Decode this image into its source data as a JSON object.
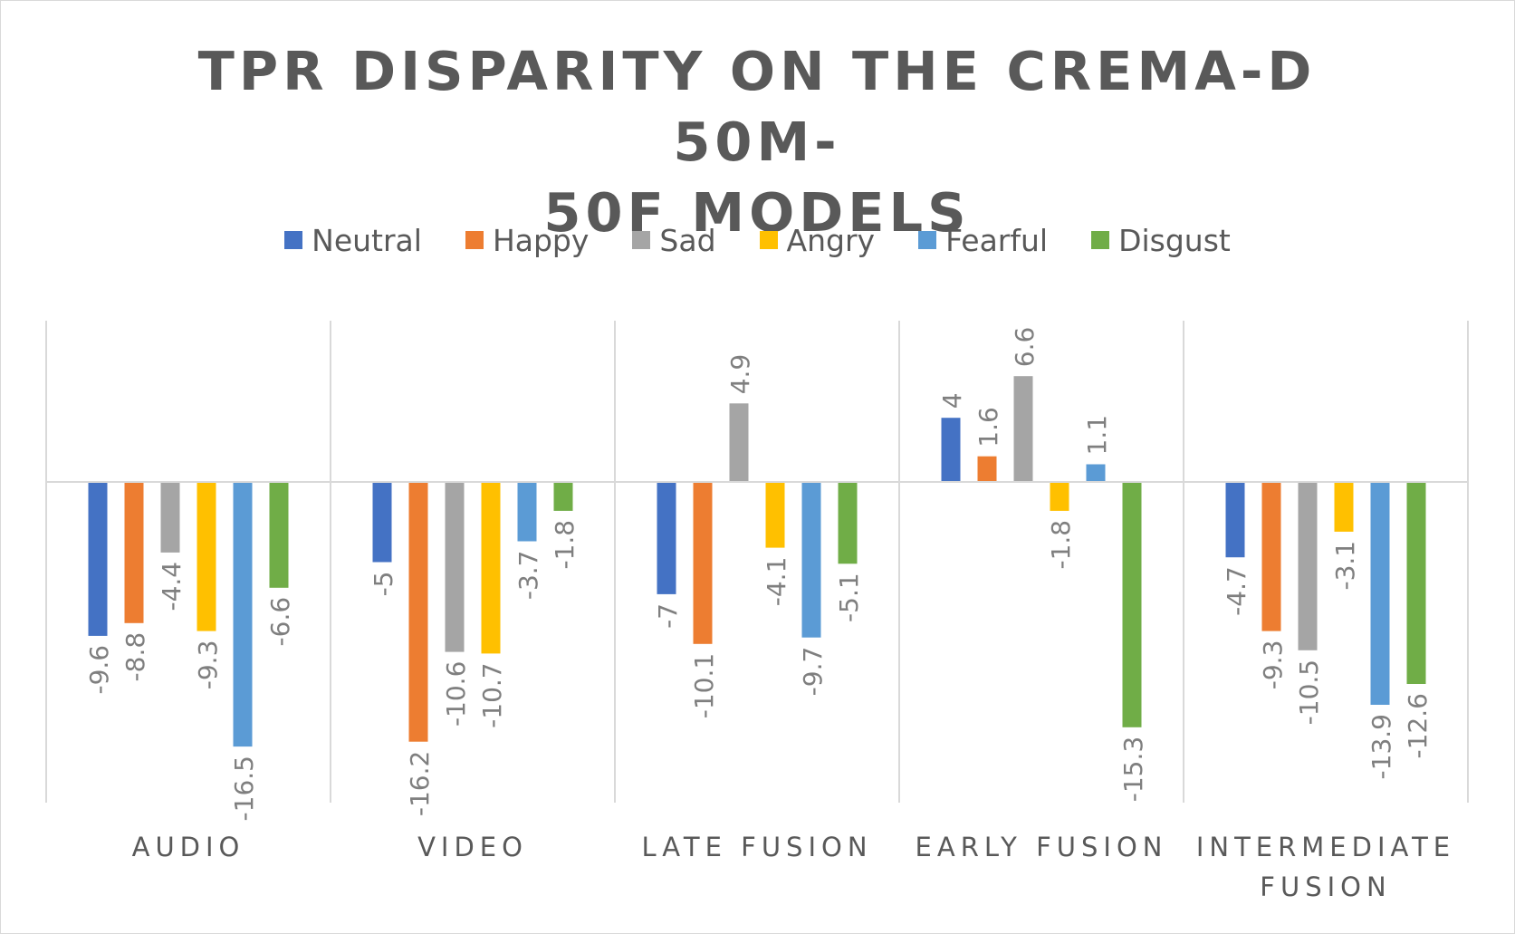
{
  "chart_data": {
    "type": "bar",
    "title": "TPR DISPARITY ON THE CREMA-D 50M-50F MODELS",
    "title_lines": [
      "TPR DISPARITY ON THE CREMA-D 50M-",
      "50F MODELS"
    ],
    "categories": [
      "AUDIO",
      "VIDEO",
      "LATE FUSION",
      "EARLY FUSION",
      "INTERMEDIATE FUSION"
    ],
    "category_lines": [
      [
        "AUDIO"
      ],
      [
        "VIDEO"
      ],
      [
        "LATE FUSION"
      ],
      [
        "EARLY FUSION"
      ],
      [
        "INTERMEDIATE",
        "FUSION"
      ]
    ],
    "series": [
      {
        "name": "Neutral",
        "color": "#4472c4",
        "values": [
          -9.6,
          -5,
          -7,
          4,
          -4.7
        ]
      },
      {
        "name": "Happy",
        "color": "#ed7d31",
        "values": [
          -8.8,
          -16.2,
          -10.1,
          1.6,
          -9.3
        ]
      },
      {
        "name": "Sad",
        "color": "#a5a5a5",
        "values": [
          -4.4,
          -10.6,
          4.9,
          6.6,
          -10.5
        ]
      },
      {
        "name": "Angry",
        "color": "#ffc000",
        "values": [
          -9.3,
          -10.7,
          -4.1,
          -1.8,
          -3.1
        ]
      },
      {
        "name": "Fearful",
        "color": "#5b9bd5",
        "values": [
          -16.5,
          -3.7,
          -9.7,
          1.1,
          -13.9
        ]
      },
      {
        "name": "Disgust",
        "color": "#70ad47",
        "values": [
          -6.6,
          -1.8,
          -5.1,
          -15.3,
          -12.6
        ]
      }
    ],
    "ylim": [
      -20,
      10
    ],
    "xlabel": "",
    "ylabel": "",
    "legend": "top",
    "grid": false,
    "data_labels": "rotated",
    "colors": {
      "axis": "#d9d9d9",
      "text": "#595959",
      "label": "#7f7f7f"
    }
  }
}
